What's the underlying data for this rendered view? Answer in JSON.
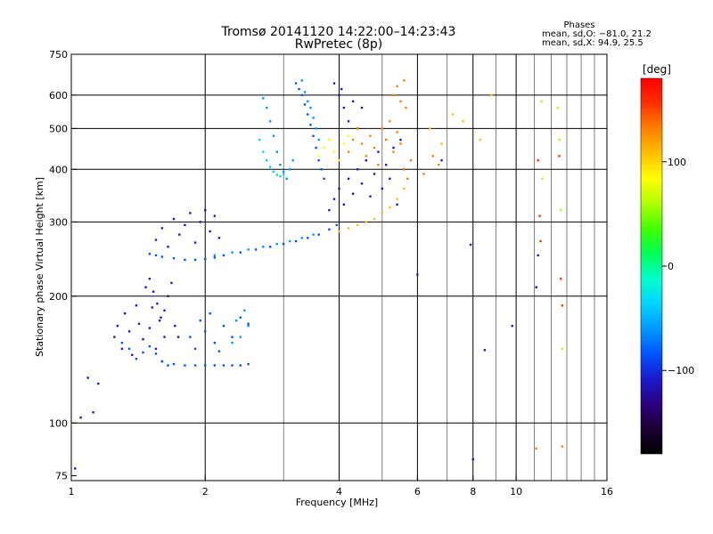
{
  "chart_data": {
    "type": "scatter",
    "title": "Tromsø 20141120 14:22:00–14:23:43",
    "subtitle": "RwPretec (8p)",
    "xlabel": "Frequency [MHz]",
    "ylabel": "Stationary phase Virtual Height [km]",
    "x_scale": "log",
    "y_scale": "log",
    "xlim": [
      1,
      16
    ],
    "ylim": [
      73,
      750
    ],
    "x_ticks": [
      1,
      2,
      4,
      6,
      8,
      10,
      16
    ],
    "x_tick_labels": [
      "1",
      "2",
      "4",
      "6",
      "8",
      "10",
      "16"
    ],
    "y_ticks": [
      75,
      100,
      200,
      300,
      400,
      500,
      600,
      750
    ],
    "y_tick_labels": [
      "75",
      "100",
      "200",
      "300",
      "400",
      "500",
      "600",
      "750"
    ],
    "x_grid": [
      1,
      2,
      3,
      4,
      5,
      6,
      7,
      8,
      9,
      10,
      11,
      12,
      13,
      14,
      15,
      16
    ],
    "x_grid_bold": [
      2,
      4,
      6,
      8,
      10
    ],
    "y_grid": [
      100,
      200,
      300,
      400,
      500,
      600
    ],
    "grid": true,
    "info_title": "Phases",
    "info_lines": [
      "mean, sd,O: −81.0, 21.2",
      "mean, sd,X:  94.9, 25.5"
    ],
    "colorbar": {
      "label": "[deg]",
      "range": [
        -180,
        180
      ],
      "ticks": [
        100,
        0,
        -100
      ],
      "tick_labels": [
        "100",
        "0",
        "−100"
      ],
      "colormap": [
        "#000000",
        "#1a0033",
        "#2a0080",
        "#1a1acc",
        "#0055ff",
        "#0099ff",
        "#00d5ff",
        "#00ffcc",
        "#00ff55",
        "#40ff00",
        "#b0ff00",
        "#ffff00",
        "#ffc000",
        "#ff8000",
        "#ff3000",
        "#ff0000"
      ]
    },
    "series": [
      {
        "phase": -110,
        "x": [
          1.02,
          1.05,
          1.09,
          1.12,
          1.15
        ],
        "y": [
          78,
          103,
          128,
          106,
          124
        ]
      },
      {
        "phase": -100,
        "x": [
          1.25,
          1.27,
          1.3,
          1.32,
          1.35,
          1.37,
          1.4,
          1.42,
          1.45,
          1.47,
          1.5,
          1.52,
          1.55,
          1.58,
          1.6,
          1.62
        ],
        "y": [
          160,
          170,
          150,
          182,
          165,
          145,
          190,
          172,
          158,
          210,
          168,
          188,
          150,
          175,
          140,
          160
        ]
      },
      {
        "phase": -90,
        "x": [
          1.3,
          1.35,
          1.4,
          1.45,
          1.5,
          1.55,
          1.6,
          1.65,
          1.7,
          1.8,
          1.9,
          2.0,
          2.1,
          2.2,
          2.3,
          2.4,
          2.5
        ],
        "y": [
          155,
          150,
          142,
          147,
          152,
          146,
          140,
          137,
          138,
          137,
          137,
          137,
          137,
          137,
          137,
          137,
          138
        ]
      },
      {
        "phase": -100,
        "x": [
          1.5,
          1.53,
          1.56,
          1.59,
          1.62,
          1.65,
          1.68,
          1.71,
          1.74
        ],
        "y": [
          220,
          205,
          192,
          178,
          185,
          200,
          215,
          170,
          160
        ]
      },
      {
        "phase": -95,
        "x": [
          1.5,
          1.55,
          1.6,
          1.7,
          1.8,
          1.9,
          2.0,
          2.1,
          2.2,
          2.4,
          2.6,
          2.8,
          3.0,
          3.2,
          3.4,
          3.6,
          3.8,
          3.95
        ],
        "y": [
          252,
          250,
          248,
          246,
          244,
          244,
          245,
          247,
          250,
          254,
          258,
          262,
          266,
          270,
          275,
          280,
          288,
          295
        ]
      },
      {
        "phase": -70,
        "x": [
          2.1,
          2.3,
          2.5,
          2.7,
          2.9,
          3.1,
          3.3,
          3.5
        ],
        "y": [
          250,
          254,
          258,
          262,
          266,
          270,
          275,
          280
        ]
      },
      {
        "phase": -100,
        "x": [
          1.55,
          1.6,
          1.65,
          1.7,
          1.75,
          1.8,
          1.85,
          1.9,
          1.95,
          2.0,
          2.05,
          2.1,
          2.15
        ],
        "y": [
          272,
          290,
          262,
          305,
          280,
          295,
          315,
          268,
          300,
          320,
          285,
          310,
          275
        ]
      },
      {
        "phase": -80,
        "x": [
          1.85,
          1.9,
          1.95,
          2.0,
          2.05,
          2.1,
          2.15,
          2.2,
          2.3,
          2.4,
          2.5
        ],
        "y": [
          160,
          150,
          175,
          165,
          182,
          155,
          148,
          170,
          160,
          178,
          172
        ]
      },
      {
        "phase": -55,
        "x": [
          2.3,
          2.35,
          2.4,
          2.45,
          2.5
        ],
        "y": [
          155,
          175,
          160,
          185,
          170
        ]
      },
      {
        "phase": -65,
        "x": [
          2.7,
          2.75,
          2.8,
          2.85,
          2.9,
          2.95,
          3.0,
          3.05,
          3.1,
          3.15
        ],
        "y": [
          590,
          560,
          520,
          480,
          440,
          410,
          395,
          380,
          400,
          420
        ]
      },
      {
        "phase": -45,
        "x": [
          2.65,
          2.7,
          2.75,
          2.8,
          2.85,
          2.9,
          2.95,
          3.0
        ],
        "y": [
          470,
          440,
          420,
          405,
          395,
          388,
          385,
          390
        ]
      },
      {
        "phase": -75,
        "x": [
          3.2,
          3.25,
          3.3,
          3.35,
          3.4,
          3.45,
          3.5,
          3.55,
          3.6,
          3.65,
          3.7
        ],
        "y": [
          640,
          620,
          600,
          570,
          540,
          510,
          480,
          450,
          420,
          400,
          380
        ]
      },
      {
        "phase": -60,
        "x": [
          3.3,
          3.35,
          3.4,
          3.45,
          3.5,
          3.55,
          3.6
        ],
        "y": [
          650,
          610,
          580,
          560,
          530,
          500,
          470
        ]
      },
      {
        "phase": -110,
        "x": [
          3.8,
          3.9,
          4.0,
          4.1,
          4.2,
          4.3,
          4.4,
          4.5,
          4.6,
          4.7,
          4.8,
          4.9,
          5.0,
          5.1,
          5.2,
          5.3,
          5.4,
          5.5,
          5.6
        ],
        "y": [
          320,
          340,
          360,
          330,
          380,
          350,
          400,
          370,
          420,
          345,
          390,
          440,
          360,
          410,
          380,
          450,
          330,
          470,
          400
        ]
      },
      {
        "phase": -120,
        "x": [
          3.9,
          4.0,
          4.05,
          4.1,
          4.2,
          4.3,
          4.4,
          4.5
        ],
        "y": [
          640,
          600,
          620,
          560,
          520,
          580,
          500,
          560
        ]
      },
      {
        "phase": 90,
        "x": [
          3.6,
          3.7,
          3.8,
          3.9,
          4.0,
          4.1,
          4.2
        ],
        "y": [
          430,
          450,
          470,
          440,
          420,
          460,
          480
        ]
      },
      {
        "phase": 120,
        "x": [
          4.2,
          4.3,
          4.4,
          4.5,
          4.6,
          4.7,
          4.8,
          4.9,
          5.0,
          5.1,
          5.2,
          5.3,
          5.4,
          5.5
        ],
        "y": [
          440,
          470,
          500,
          460,
          430,
          480,
          450,
          410,
          500,
          470,
          520,
          440,
          490,
          460
        ]
      },
      {
        "phase": 110,
        "x": [
          4.0,
          4.2,
          4.4,
          4.6,
          4.8,
          5.0,
          5.2,
          5.4,
          5.6
        ],
        "y": [
          285,
          290,
          295,
          300,
          305,
          315,
          325,
          340,
          360
        ]
      },
      {
        "phase": 140,
        "x": [
          5.3,
          5.4,
          5.5,
          5.6,
          5.65
        ],
        "y": [
          600,
          630,
          580,
          650,
          560
        ]
      },
      {
        "phase": 130,
        "x": [
          5.6,
          5.7,
          5.8,
          6.2,
          6.5,
          6.7
        ],
        "y": [
          400,
          380,
          420,
          390,
          430,
          410
        ]
      },
      {
        "phase": 100,
        "x": [
          6.4,
          6.8,
          7.2,
          7.6,
          8.3,
          8.8
        ],
        "y": [
          500,
          460,
          540,
          520,
          470,
          600
        ]
      },
      {
        "phase": -110,
        "x": [
          6.0,
          6.8,
          7.9,
          8.0,
          8.5,
          9.8,
          11.1,
          11.2
        ],
        "y": [
          225,
          420,
          265,
          82,
          149,
          170,
          210,
          250
        ]
      },
      {
        "phase": 160,
        "x": [
          11.2,
          11.3,
          11.35,
          12.5,
          12.6,
          12.7
        ],
        "y": [
          420,
          310,
          270,
          430,
          220,
          190
        ]
      },
      {
        "phase": 70,
        "x": [
          11.4,
          11.45,
          12.4,
          12.5,
          12.6,
          12.7
        ],
        "y": [
          580,
          380,
          560,
          470,
          320,
          150
        ]
      },
      {
        "phase": 130,
        "x": [
          11.1,
          12.7
        ],
        "y": [
          87,
          88
        ]
      }
    ]
  }
}
